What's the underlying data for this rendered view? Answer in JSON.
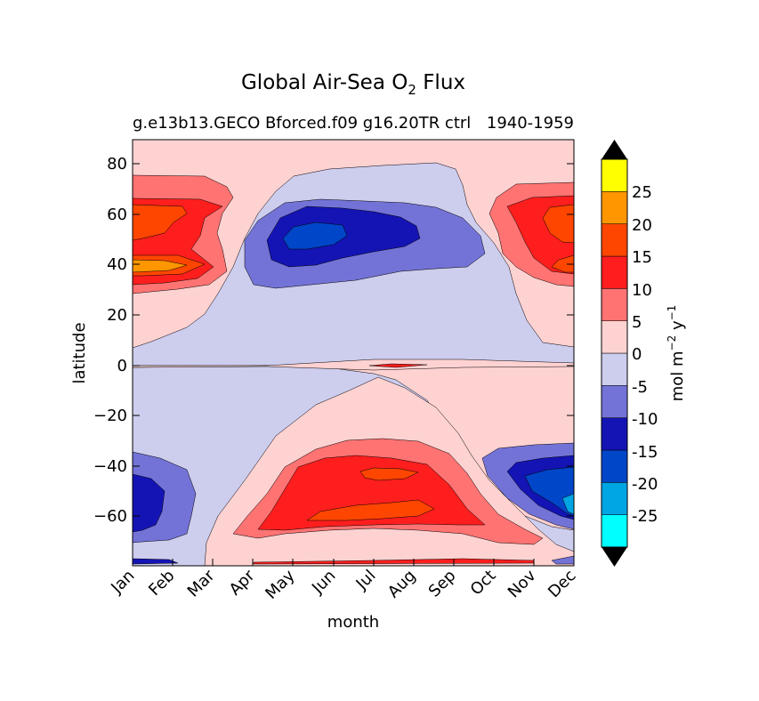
{
  "chart_data": {
    "type": "heatmap",
    "title": "Global Air-Sea O",
    "title_subscript": "2",
    "title_suffix": " Flux",
    "subtitle_left": "g.e13b13.GECO Bforced.f09 g16.20TR ctrl",
    "subtitle_right": "1940-1959",
    "xlabel": "month",
    "ylabel": "latitude",
    "x_categories": [
      "Jan",
      "Feb",
      "Mar",
      "Apr",
      "May",
      "Jun",
      "Jul",
      "Aug",
      "Sep",
      "Oct",
      "Nov",
      "Dec"
    ],
    "y_ticks": [
      "80",
      "60",
      "40",
      "20",
      "0",
      "−20",
      "−40",
      "−60"
    ],
    "ylim": [
      -78,
      90
    ],
    "colorbar": {
      "label_main": "mol m",
      "label_exp1": "−2",
      "label_mid": "  y",
      "label_exp2": "−1",
      "tick_labels": [
        "25",
        "20",
        "15",
        "10",
        "5",
        "0",
        "-5",
        "-10",
        "-15",
        "-20",
        "-25"
      ],
      "levels": [
        -30,
        -25,
        -20,
        -15,
        -10,
        -5,
        0,
        5,
        10,
        15,
        20,
        25,
        30
      ],
      "colors": [
        "#00ffff",
        "#00a5e3",
        "#0046c8",
        "#1414b4",
        "#7373d7",
        "#cdcdee",
        "#ffd2d2",
        "#ff7373",
        "#ff1e1e",
        "#ff4600",
        "#ff9600",
        "#ffff00"
      ],
      "extend_colors": {
        "under": "#000000",
        "over": "#000000"
      }
    }
  }
}
